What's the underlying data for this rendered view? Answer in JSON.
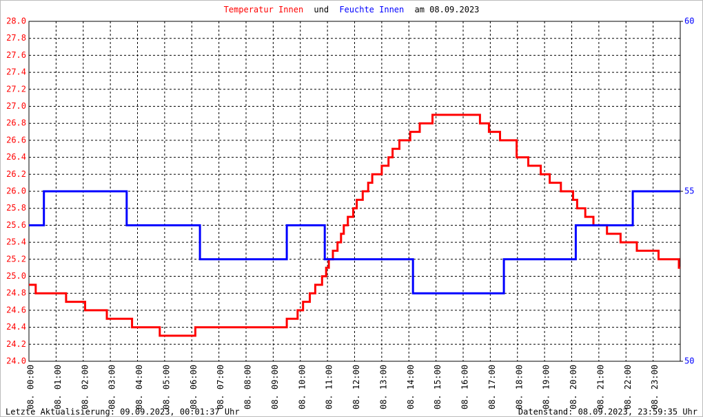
{
  "chart_data": {
    "type": "line",
    "title_joiner": "und",
    "title_date": "am 08.09.2023",
    "footer_left": "Letzte Aktualisierung: 09.09.2023, 00:01:37 Uhr",
    "footer_right": "Datenstand: 08.09.2023, 23:59:35 Uhr",
    "grid": true,
    "xlim": [
      0,
      24
    ],
    "xticks": [
      {
        "value": 0,
        "label": "08. 00:00"
      },
      {
        "value": 1,
        "label": "08. 01:00"
      },
      {
        "value": 2,
        "label": "08. 02:00"
      },
      {
        "value": 3,
        "label": "08. 03:00"
      },
      {
        "value": 4,
        "label": "08. 04:00"
      },
      {
        "value": 5,
        "label": "08. 05:00"
      },
      {
        "value": 6,
        "label": "08. 06:00"
      },
      {
        "value": 7,
        "label": "08. 07:00"
      },
      {
        "value": 8,
        "label": "08. 08:00"
      },
      {
        "value": 9,
        "label": "08. 09:00"
      },
      {
        "value": 10,
        "label": "08. 10:00"
      },
      {
        "value": 11,
        "label": "08. 11:00"
      },
      {
        "value": 12,
        "label": "08. 12:00"
      },
      {
        "value": 13,
        "label": "08. 13:00"
      },
      {
        "value": 14,
        "label": "08. 14:00"
      },
      {
        "value": 15,
        "label": "08. 15:00"
      },
      {
        "value": 16,
        "label": "08. 16:00"
      },
      {
        "value": 17,
        "label": "08. 17:00"
      },
      {
        "value": 18,
        "label": "08. 18:00"
      },
      {
        "value": 19,
        "label": "08. 19:00"
      },
      {
        "value": 20,
        "label": "08. 20:00"
      },
      {
        "value": 21,
        "label": "08. 21:00"
      },
      {
        "value": 22,
        "label": "08. 22:00"
      },
      {
        "value": 23,
        "label": "08. 23:00"
      }
    ],
    "ylim": [
      24,
      28
    ],
    "yticks": [
      {
        "value": 24,
        "label": "24.0"
      },
      24.2,
      24.4,
      24.6,
      24.8,
      {
        "value": 25,
        "label": "25.0"
      },
      25.2,
      25.4,
      25.6,
      25.8,
      {
        "value": 26,
        "label": "26.0"
      },
      26.2,
      26.4,
      26.6,
      26.8,
      {
        "value": 27,
        "label": "27.0"
      },
      27.2,
      27.4,
      27.6,
      27.8,
      {
        "value": 28,
        "label": "28.0"
      }
    ],
    "y2lim": [
      50,
      60
    ],
    "y2ticks": [
      50,
      55,
      60
    ],
    "series": [
      {
        "name": "Temperatur Innen",
        "color": "#ff0000",
        "x": [
          0,
          0.25,
          0.25,
          1.37,
          1.37,
          2.07,
          2.07,
          2.87,
          2.87,
          3.8,
          3.8,
          4.82,
          4.82,
          6.13,
          6.13,
          9.5,
          9.5,
          9.9,
          9.9,
          10.1,
          10.1,
          10.35,
          10.35,
          10.55,
          10.55,
          10.8,
          10.8,
          10.95,
          10.95,
          11.05,
          11.05,
          11.2,
          11.2,
          11.37,
          11.37,
          11.5,
          11.5,
          11.6,
          11.6,
          11.75,
          11.75,
          11.95,
          11.95,
          12.08,
          12.08,
          12.3,
          12.3,
          12.5,
          12.5,
          12.65,
          12.65,
          13.0,
          13.0,
          13.25,
          13.25,
          13.4,
          13.4,
          13.65,
          13.65,
          14.05,
          14.05,
          14.4,
          14.4,
          14.87,
          14.87,
          16.62,
          16.62,
          16.95,
          16.95,
          17.36,
          17.36,
          17.97,
          17.97,
          18.4,
          18.4,
          18.86,
          18.86,
          19.19,
          19.19,
          19.6,
          19.6,
          20.05,
          20.05,
          20.2,
          20.2,
          20.5,
          20.5,
          20.8,
          20.8,
          21.3,
          21.3,
          21.8,
          21.8,
          22.4,
          22.4,
          23.2,
          23.2,
          23.95,
          23.95,
          24
        ],
        "values": [
          24.9,
          24.9,
          24.8,
          24.8,
          24.7,
          24.7,
          24.6,
          24.6,
          24.5,
          24.5,
          24.4,
          24.4,
          24.3,
          24.3,
          24.4,
          24.4,
          24.5,
          24.5,
          24.6,
          24.6,
          24.7,
          24.7,
          24.8,
          24.8,
          24.9,
          24.9,
          25.0,
          25.0,
          25.1,
          25.1,
          25.2,
          25.2,
          25.3,
          25.3,
          25.4,
          25.4,
          25.5,
          25.5,
          25.6,
          25.6,
          25.7,
          25.7,
          25.8,
          25.8,
          25.9,
          25.9,
          26.0,
          26.0,
          26.1,
          26.1,
          26.2,
          26.2,
          26.3,
          26.3,
          26.4,
          26.4,
          26.5,
          26.5,
          26.6,
          26.6,
          26.7,
          26.7,
          26.8,
          26.8,
          26.9,
          26.9,
          26.8,
          26.8,
          26.7,
          26.7,
          26.6,
          26.6,
          26.4,
          26.4,
          26.3,
          26.3,
          26.2,
          26.2,
          26.1,
          26.1,
          26.0,
          26.0,
          25.9,
          25.9,
          25.8,
          25.8,
          25.7,
          25.7,
          25.6,
          25.6,
          25.5,
          25.5,
          25.4,
          25.4,
          25.3,
          25.3,
          25.2,
          25.2,
          25.1,
          25.1
        ]
      },
      {
        "name": "Feuchte Innen",
        "color": "#0000ff",
        "axis": "y2",
        "x": [
          0,
          0.55,
          0.55,
          3.6,
          3.6,
          6.3,
          6.3,
          9.5,
          9.5,
          10.9,
          10.9,
          14.15,
          14.15,
          17.5,
          17.5,
          20.15,
          20.15,
          22.25,
          22.25,
          24
        ],
        "values": [
          54,
          54,
          55,
          55,
          54,
          54,
          53,
          53,
          54,
          54,
          53,
          53,
          52,
          52,
          53,
          53,
          54,
          54,
          55,
          55
        ]
      }
    ]
  }
}
